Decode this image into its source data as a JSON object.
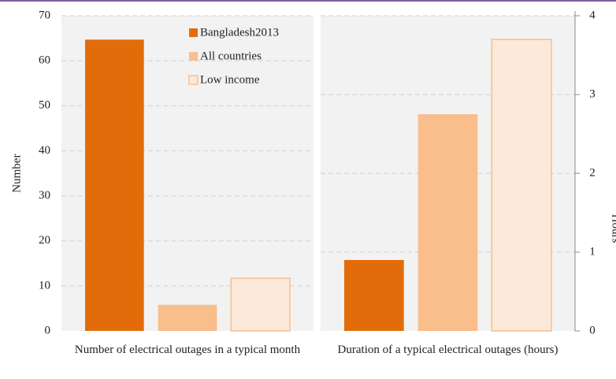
{
  "chart_data": [
    {
      "type": "bar",
      "ylabel": "Number",
      "categories": [
        "Number of electrical outages in a typical month"
      ],
      "series": [
        {
          "name": "Bangladesh2013",
          "color": "#e36c0a",
          "values": [
            64.7
          ]
        },
        {
          "name": "All countries",
          "color": "#f9be8c",
          "values": [
            5.8
          ]
        },
        {
          "name": "Low income",
          "color": "#fde9d9",
          "values": [
            11.7
          ]
        }
      ],
      "ylim": [
        0,
        70
      ],
      "yticks": [
        0,
        10,
        20,
        30,
        40,
        50,
        60,
        70
      ],
      "grid": true,
      "legend": "top-right"
    },
    {
      "type": "bar",
      "y2label": "Hours",
      "categories": [
        "Duration of a typical electrical outages (hours)"
      ],
      "series": [
        {
          "color": "#e36c0a",
          "values": [
            0.9
          ],
          "axis": "y2"
        },
        {
          "color": "#f9be8c",
          "values": [
            2.75
          ],
          "axis": "y2"
        },
        {
          "color": "#fde9d9",
          "values": [
            3.7
          ],
          "axis": "y2"
        }
      ],
      "y2lim": [
        0,
        4
      ],
      "y2ticks": [
        0,
        1,
        2,
        3,
        4
      ],
      "grid": true
    }
  ]
}
